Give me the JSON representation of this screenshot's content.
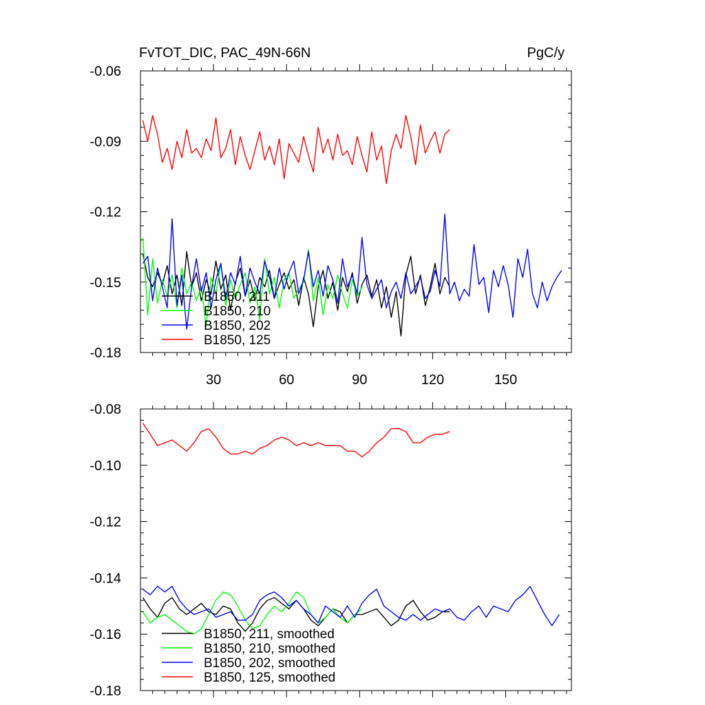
{
  "chart_data": [
    {
      "type": "line",
      "title": "FvTOT_DIC, PAC_49N-66N",
      "units": "PgC/y",
      "xlim": [
        0,
        177
      ],
      "ylim": [
        -0.18,
        -0.06
      ],
      "yticks": [
        -0.18,
        -0.15,
        -0.12,
        -0.09,
        -0.06
      ],
      "ytick_labels": [
        "-0.18",
        "-0.15",
        "-0.12",
        "-0.09",
        "-0.06"
      ],
      "xticks": [
        30,
        60,
        90,
        120,
        150
      ],
      "xtick_labels": [
        "30",
        "60",
        "90",
        "120",
        "150"
      ],
      "legend_position": "bottom-left",
      "series": [
        {
          "name": "B1850, 211",
          "color": "#000000",
          "x": [
            1,
            3,
            5,
            7,
            9,
            11,
            13,
            15,
            17,
            19,
            21,
            23,
            25,
            27,
            29,
            31,
            33,
            35,
            37,
            39,
            41,
            43,
            45,
            47,
            49,
            51,
            53,
            55,
            57,
            59,
            61,
            63,
            65,
            67,
            69,
            71,
            73,
            75,
            77,
            79,
            81,
            83,
            85,
            87,
            89,
            91,
            93,
            95,
            97,
            99,
            101,
            103,
            105,
            107,
            109,
            111,
            113,
            115,
            117,
            119,
            121,
            123,
            125,
            127
          ],
          "y": [
            -0.138,
            -0.148,
            -0.152,
            -0.146,
            -0.151,
            -0.143,
            -0.155,
            -0.147,
            -0.16,
            -0.137,
            -0.152,
            -0.146,
            -0.158,
            -0.149,
            -0.155,
            -0.141,
            -0.153,
            -0.147,
            -0.162,
            -0.15,
            -0.144,
            -0.156,
            -0.149,
            -0.158,
            -0.148,
            -0.152,
            -0.145,
            -0.157,
            -0.151,
            -0.146,
            -0.153,
            -0.149,
            -0.16,
            -0.148,
            -0.155,
            -0.169,
            -0.152,
            -0.145,
            -0.157,
            -0.15,
            -0.162,
            -0.148,
            -0.154,
            -0.146,
            -0.159,
            -0.151,
            -0.147,
            -0.156,
            -0.149,
            -0.161,
            -0.152,
            -0.165,
            -0.154,
            -0.173,
            -0.147,
            -0.139,
            -0.155,
            -0.147,
            -0.16,
            -0.152,
            -0.142,
            -0.155,
            -0.148,
            -0.152
          ]
        },
        {
          "name": "B1850, 210",
          "color": "#00ff00",
          "x": [
            1,
            3,
            5,
            7,
            9,
            11,
            13,
            15,
            17,
            19,
            21,
            23,
            25,
            27,
            29,
            31,
            33,
            35,
            37,
            39,
            41,
            43,
            45,
            47,
            49,
            51,
            53,
            55,
            57,
            59,
            61,
            63,
            65,
            67,
            69,
            71,
            73,
            75,
            77,
            79,
            81,
            83,
            85,
            87,
            89,
            91
          ],
          "y": [
            -0.131,
            -0.164,
            -0.14,
            -0.159,
            -0.149,
            -0.156,
            -0.147,
            -0.161,
            -0.144,
            -0.155,
            -0.15,
            -0.158,
            -0.152,
            -0.169,
            -0.148,
            -0.155,
            -0.142,
            -0.16,
            -0.149,
            -0.157,
            -0.151,
            -0.146,
            -0.159,
            -0.152,
            -0.166,
            -0.14,
            -0.155,
            -0.148,
            -0.161,
            -0.149,
            -0.146,
            -0.157,
            -0.153,
            -0.15,
            -0.136,
            -0.158,
            -0.148,
            -0.164,
            -0.151,
            -0.157,
            -0.147,
            -0.155,
            -0.161,
            -0.149,
            -0.156,
            -0.152
          ]
        },
        {
          "name": "B1850, 202",
          "color": "#0000ff",
          "x": [
            1,
            3,
            5,
            7,
            9,
            11,
            13,
            15,
            17,
            19,
            21,
            23,
            25,
            27,
            29,
            31,
            33,
            35,
            37,
            39,
            41,
            43,
            45,
            47,
            49,
            51,
            53,
            55,
            57,
            59,
            61,
            63,
            65,
            67,
            69,
            71,
            73,
            75,
            77,
            79,
            81,
            83,
            85,
            87,
            89,
            91,
            93,
            95,
            97,
            99,
            101,
            103,
            105,
            107,
            109,
            111,
            113,
            115,
            117,
            119,
            121,
            123,
            125,
            127,
            129,
            131,
            133,
            135,
            137,
            139,
            141,
            143,
            145,
            147,
            149,
            151,
            153,
            155,
            157,
            159,
            161,
            163,
            165,
            167,
            169,
            171,
            173
          ],
          "y": [
            -0.142,
            -0.139,
            -0.158,
            -0.144,
            -0.152,
            -0.161,
            -0.123,
            -0.16,
            -0.147,
            -0.17,
            -0.152,
            -0.14,
            -0.154,
            -0.146,
            -0.161,
            -0.149,
            -0.142,
            -0.157,
            -0.146,
            -0.151,
            -0.139,
            -0.156,
            -0.144,
            -0.15,
            -0.155,
            -0.141,
            -0.148,
            -0.157,
            -0.144,
            -0.153,
            -0.146,
            -0.141,
            -0.155,
            -0.149,
            -0.137,
            -0.152,
            -0.145,
            -0.156,
            -0.143,
            -0.149,
            -0.159,
            -0.14,
            -0.152,
            -0.147,
            -0.155,
            -0.131,
            -0.151,
            -0.157,
            -0.153,
            -0.149,
            -0.161,
            -0.154,
            -0.15,
            -0.157,
            -0.146,
            -0.155,
            -0.152,
            -0.148,
            -0.157,
            -0.154,
            -0.145,
            -0.152,
            -0.121,
            -0.155,
            -0.15,
            -0.158,
            -0.153,
            -0.156,
            -0.134,
            -0.151,
            -0.148,
            -0.163,
            -0.145,
            -0.152,
            -0.143,
            -0.151,
            -0.165,
            -0.14,
            -0.148,
            -0.136,
            -0.155,
            -0.161,
            -0.15,
            -0.158,
            -0.152,
            -0.148,
            -0.145
          ]
        },
        {
          "name": "B1850, 125",
          "color": "#ff0000",
          "x": [
            1,
            3,
            5,
            7,
            9,
            11,
            13,
            15,
            17,
            19,
            21,
            23,
            25,
            27,
            29,
            31,
            33,
            35,
            37,
            39,
            41,
            43,
            45,
            47,
            49,
            51,
            53,
            55,
            57,
            59,
            61,
            63,
            65,
            67,
            69,
            71,
            73,
            75,
            77,
            79,
            81,
            83,
            85,
            87,
            89,
            91,
            93,
            95,
            97,
            99,
            101,
            103,
            105,
            107,
            109,
            111,
            113,
            115,
            117,
            119,
            121,
            123,
            125,
            127
          ],
          "y": [
            -0.081,
            -0.09,
            -0.079,
            -0.087,
            -0.099,
            -0.093,
            -0.102,
            -0.09,
            -0.097,
            -0.085,
            -0.095,
            -0.093,
            -0.097,
            -0.089,
            -0.094,
            -0.08,
            -0.097,
            -0.093,
            -0.085,
            -0.1,
            -0.088,
            -0.096,
            -0.102,
            -0.094,
            -0.086,
            -0.098,
            -0.092,
            -0.1,
            -0.089,
            -0.106,
            -0.091,
            -0.095,
            -0.099,
            -0.088,
            -0.096,
            -0.103,
            -0.084,
            -0.095,
            -0.089,
            -0.098,
            -0.087,
            -0.096,
            -0.094,
            -0.1,
            -0.088,
            -0.096,
            -0.103,
            -0.086,
            -0.098,
            -0.092,
            -0.108,
            -0.094,
            -0.087,
            -0.093,
            -0.079,
            -0.088,
            -0.1,
            -0.083,
            -0.095,
            -0.09,
            -0.086,
            -0.095,
            -0.087,
            -0.085
          ]
        }
      ]
    },
    {
      "type": "line",
      "xlim": [
        0,
        177
      ],
      "ylim": [
        -0.18,
        -0.08
      ],
      "yticks": [
        -0.18,
        -0.16,
        -0.14,
        -0.12,
        -0.1,
        -0.08
      ],
      "ytick_labels": [
        "-0.18",
        "-0.16",
        "-0.14",
        "-0.12",
        "-0.10",
        "-0.08"
      ],
      "xticks": [
        30,
        60,
        90,
        120,
        150
      ],
      "legend_position": "bottom-left",
      "series": [
        {
          "name": "B1850, 211, smoothed",
          "color": "#000000",
          "x": [
            1,
            4,
            7,
            10,
            13,
            16,
            19,
            22,
            25,
            28,
            31,
            34,
            37,
            40,
            43,
            46,
            49,
            52,
            55,
            58,
            61,
            64,
            67,
            70,
            73,
            76,
            79,
            82,
            85,
            88,
            91,
            94,
            97,
            100,
            103,
            106,
            109,
            112,
            115,
            118,
            121,
            124,
            127
          ],
          "y": [
            -0.147,
            -0.151,
            -0.154,
            -0.149,
            -0.147,
            -0.151,
            -0.153,
            -0.151,
            -0.149,
            -0.152,
            -0.153,
            -0.15,
            -0.151,
            -0.156,
            -0.159,
            -0.156,
            -0.151,
            -0.148,
            -0.147,
            -0.149,
            -0.151,
            -0.148,
            -0.151,
            -0.155,
            -0.157,
            -0.154,
            -0.151,
            -0.152,
            -0.156,
            -0.153,
            -0.153,
            -0.152,
            -0.151,
            -0.154,
            -0.157,
            -0.155,
            -0.15,
            -0.148,
            -0.152,
            -0.155,
            -0.154,
            -0.152,
            -0.152
          ]
        },
        {
          "name": "B1850, 210, smoothed",
          "color": "#00ff00",
          "x": [
            1,
            4,
            7,
            10,
            13,
            16,
            19,
            22,
            25,
            28,
            31,
            34,
            37,
            40,
            43,
            46,
            49,
            52,
            55,
            58,
            61,
            64,
            67,
            70,
            73,
            76,
            79,
            82,
            85,
            88,
            91
          ],
          "y": [
            -0.152,
            -0.156,
            -0.154,
            -0.153,
            -0.155,
            -0.157,
            -0.159,
            -0.16,
            -0.158,
            -0.153,
            -0.148,
            -0.145,
            -0.146,
            -0.15,
            -0.155,
            -0.158,
            -0.157,
            -0.153,
            -0.15,
            -0.152,
            -0.149,
            -0.145,
            -0.147,
            -0.153,
            -0.156,
            -0.154,
            -0.151,
            -0.154,
            -0.156,
            -0.153,
            -0.151
          ]
        },
        {
          "name": "B1850, 202, smoothed",
          "color": "#0000ff",
          "x": [
            1,
            4,
            7,
            10,
            13,
            16,
            19,
            22,
            25,
            28,
            31,
            34,
            37,
            40,
            43,
            46,
            49,
            52,
            55,
            58,
            61,
            64,
            67,
            70,
            73,
            76,
            79,
            82,
            85,
            88,
            91,
            94,
            97,
            100,
            103,
            106,
            109,
            112,
            115,
            118,
            121,
            124,
            127,
            130,
            133,
            136,
            139,
            142,
            145,
            148,
            151,
            154,
            157,
            160,
            163,
            166,
            169,
            172
          ],
          "y": [
            -0.144,
            -0.146,
            -0.143,
            -0.145,
            -0.143,
            -0.148,
            -0.151,
            -0.153,
            -0.152,
            -0.151,
            -0.154,
            -0.153,
            -0.152,
            -0.155,
            -0.155,
            -0.153,
            -0.148,
            -0.146,
            -0.145,
            -0.147,
            -0.15,
            -0.148,
            -0.151,
            -0.153,
            -0.156,
            -0.15,
            -0.152,
            -0.154,
            -0.15,
            -0.154,
            -0.149,
            -0.146,
            -0.144,
            -0.15,
            -0.152,
            -0.154,
            -0.155,
            -0.153,
            -0.155,
            -0.153,
            -0.151,
            -0.152,
            -0.151,
            -0.154,
            -0.155,
            -0.152,
            -0.15,
            -0.154,
            -0.15,
            -0.151,
            -0.152,
            -0.148,
            -0.146,
            -0.143,
            -0.148,
            -0.153,
            -0.157,
            -0.153
          ]
        },
        {
          "name": "B1850, 125, smoothed",
          "color": "#ff0000",
          "x": [
            1,
            4,
            7,
            10,
            13,
            16,
            19,
            22,
            25,
            28,
            31,
            34,
            37,
            40,
            43,
            46,
            49,
            52,
            55,
            58,
            61,
            64,
            67,
            70,
            73,
            76,
            79,
            82,
            85,
            88,
            91,
            94,
            97,
            100,
            103,
            106,
            109,
            112,
            115,
            118,
            121,
            124,
            127
          ],
          "y": [
            -0.085,
            -0.089,
            -0.093,
            -0.092,
            -0.091,
            -0.093,
            -0.095,
            -0.092,
            -0.088,
            -0.087,
            -0.09,
            -0.094,
            -0.096,
            -0.096,
            -0.095,
            -0.096,
            -0.094,
            -0.093,
            -0.091,
            -0.09,
            -0.091,
            -0.093,
            -0.092,
            -0.093,
            -0.092,
            -0.093,
            -0.093,
            -0.093,
            -0.095,
            -0.095,
            -0.097,
            -0.095,
            -0.092,
            -0.09,
            -0.087,
            -0.087,
            -0.088,
            -0.092,
            -0.092,
            -0.09,
            -0.089,
            -0.089,
            -0.088
          ]
        }
      ]
    }
  ]
}
